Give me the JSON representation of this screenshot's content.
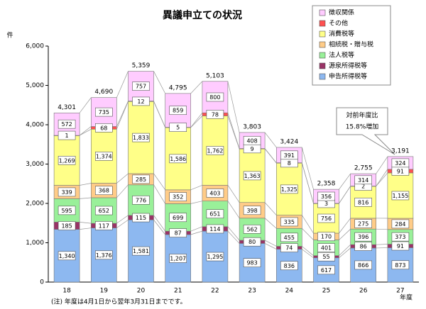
{
  "chart_data": {
    "type": "stacked_bar",
    "title": "異議申立ての状況",
    "y_unit": "件",
    "x_label": "年度",
    "note": "(注) 年度は4月1日から翌年3月31日までです。",
    "annotation": [
      "対前年度比",
      "15.8%増加"
    ],
    "categories": [
      "18",
      "19",
      "20",
      "21",
      "22",
      "23",
      "24",
      "25",
      "26",
      "27"
    ],
    "series": [
      {
        "name": "申告所得税等",
        "color": "#8db8f0",
        "values": [
          1340,
          1376,
          1581,
          1207,
          1295,
          983,
          836,
          617,
          866,
          873
        ],
        "value_labels": [
          "1,340",
          "1,376",
          "1,581",
          "1,207",
          "1,295",
          "983",
          "836",
          "617",
          "866",
          "873"
        ]
      },
      {
        "name": "源泉所得税等",
        "color": "#993366",
        "values": [
          185,
          117,
          115,
          87,
          114,
          80,
          74,
          55,
          86,
          91
        ]
      },
      {
        "name": "法人税等",
        "color": "#99f099",
        "values": [
          595,
          652,
          776,
          699,
          651,
          562,
          455,
          401,
          396,
          373
        ]
      },
      {
        "name": "相続税・贈与税",
        "color": "#ffcc88",
        "values": [
          339,
          368,
          285,
          352,
          403,
          398,
          335,
          170,
          275,
          284
        ]
      },
      {
        "name": "消費税等",
        "color": "#ffff88",
        "values": [
          1269,
          1374,
          1833,
          1586,
          1762,
          1363,
          1325,
          756,
          816,
          1155
        ],
        "value_labels": [
          "1,269",
          "1,374",
          "1,833",
          "1,586",
          "1,762",
          "1,363",
          "1,325",
          "756",
          "816",
          "1,155"
        ]
      },
      {
        "name": "その他",
        "color": "#ff5050",
        "values": [
          1,
          68,
          12,
          5,
          78,
          9,
          8,
          3,
          2,
          91
        ]
      },
      {
        "name": "徴収関係",
        "color": "#ffccff",
        "values": [
          572,
          735,
          757,
          859,
          800,
          408,
          391,
          356,
          314,
          324
        ]
      }
    ],
    "totals": [
      4301,
      4690,
      5359,
      4795,
      5103,
      3803,
      3424,
      2358,
      2755,
      3191
    ],
    "total_labels": [
      "4,301",
      "4,690",
      "5,359",
      "4,795",
      "5,103",
      "3,803",
      "3,424",
      "2,358",
      "2,755",
      "3,191"
    ],
    "ylim": [
      0,
      6000
    ],
    "yticks": [
      0,
      {
        "value": 1000,
        "label": "1,000"
      },
      {
        "value": 2000,
        "label": "2,000"
      },
      {
        "value": 3000,
        "label": "3,000"
      },
      {
        "value": 4000,
        "label": "4,000"
      },
      {
        "value": 5000,
        "label": "5,000"
      },
      {
        "value": 6000,
        "label": "6,000"
      }
    ],
    "grid": false,
    "legend": "top-right"
  }
}
